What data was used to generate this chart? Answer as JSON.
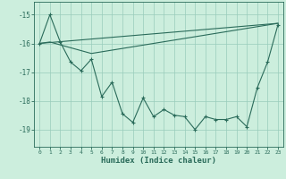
{
  "xlabel": "Humidex (Indice chaleur)",
  "bg_color": "#cceedd",
  "grid_color": "#99ccbb",
  "line_color": "#2a6b5a",
  "xlim": [
    -0.5,
    23.5
  ],
  "ylim": [
    -19.6,
    -14.55
  ],
  "yticks": [
    -19,
    -18,
    -17,
    -16,
    -15
  ],
  "xticks": [
    0,
    1,
    2,
    3,
    4,
    5,
    6,
    7,
    8,
    9,
    10,
    11,
    12,
    13,
    14,
    15,
    16,
    17,
    18,
    19,
    20,
    21,
    22,
    23
  ],
  "line1_x": [
    0,
    23
  ],
  "line1_y": [
    -16.0,
    -15.3
  ],
  "line2_x": [
    0,
    1,
    5,
    23
  ],
  "line2_y": [
    -16.0,
    -15.95,
    -16.35,
    -15.3
  ],
  "jagged_x": [
    0,
    1,
    2,
    3,
    4,
    5,
    6,
    7,
    8,
    9,
    10,
    11,
    12,
    13,
    14,
    15,
    16,
    17,
    18,
    19,
    20,
    21,
    22,
    23
  ],
  "jagged_y": [
    -16.0,
    -15.0,
    -15.95,
    -16.65,
    -16.95,
    -16.55,
    -17.85,
    -17.35,
    -18.45,
    -18.75,
    -17.9,
    -18.55,
    -18.3,
    -18.5,
    -18.55,
    -19.0,
    -18.55,
    -18.65,
    -18.65,
    -18.55,
    -18.9,
    -17.55,
    -16.65,
    -15.35
  ]
}
